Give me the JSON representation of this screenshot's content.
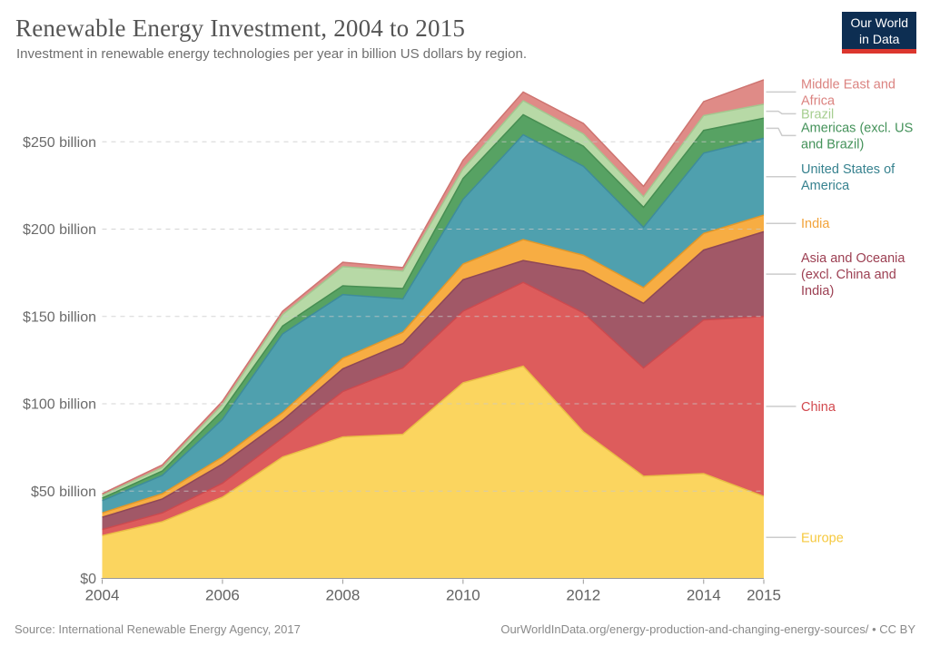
{
  "header": {
    "title": "Renewable Energy Investment, 2004 to 2015",
    "subtitle": "Investment in renewable energy technologies per year in billion US dollars by region.",
    "logo": {
      "line1": "Our World",
      "line2": "in Data",
      "bg_color": "#0d2e52",
      "bar_color": "#dc362e"
    }
  },
  "footer": {
    "source": "Source: International Renewable Energy Agency, 2017",
    "attribution": "OurWorldInData.org/energy-production-and-changing-energy-sources/ • CC BY"
  },
  "chart_data": {
    "type": "area",
    "stacked": true,
    "title": "Renewable Energy Investment, 2004 to 2015",
    "unit": "billion US dollars",
    "x": [
      2004,
      2005,
      2006,
      2007,
      2008,
      2009,
      2010,
      2011,
      2012,
      2013,
      2014,
      2015
    ],
    "x_tick_labels": [
      "2004",
      "2006",
      "2008",
      "2010",
      "2012",
      "2014",
      "2015"
    ],
    "y_ticks": [
      {
        "value": 0,
        "label": "$0"
      },
      {
        "value": 50,
        "label": "$50 billion"
      },
      {
        "value": 100,
        "label": "$100 billion"
      },
      {
        "value": 150,
        "label": "$150 billion"
      },
      {
        "value": 200,
        "label": "$200 billion"
      },
      {
        "value": 250,
        "label": "$250 billion"
      }
    ],
    "ylim": [
      0,
      300
    ],
    "grid": true,
    "legend_position": "right",
    "series_bottom_to_top": [
      {
        "name": "Europe",
        "color": "#FBD55F",
        "stroke": "#E9BE45",
        "label_color": "#F6C93E",
        "values": [
          24.5,
          32.5,
          46.5,
          69.5,
          81,
          82.5,
          112,
          121.5,
          84,
          58.5,
          60,
          47
        ]
      },
      {
        "name": "China",
        "color": "#DD5C5C",
        "stroke": "#CB4A4F",
        "label_color": "#D2494E",
        "values": [
          3.5,
          5,
          8,
          11,
          26,
          38,
          41,
          48,
          68,
          62,
          88,
          103
        ]
      },
      {
        "name": "Asia and Oceania (excl. China and India)",
        "color": "#A15867",
        "stroke": "#8E4757",
        "label_color": "#9C3F52",
        "values": [
          7,
          8,
          11,
          10,
          13,
          14,
          18,
          12.5,
          24,
          37,
          40,
          48.5
        ]
      },
      {
        "name": "India",
        "color": "#F7AD43",
        "stroke": "#E29729",
        "label_color": "#F2A33A",
        "values": [
          2.5,
          3,
          4,
          4.5,
          6,
          6.5,
          9,
          12,
          9,
          9,
          9.5,
          9.5
        ]
      },
      {
        "name": "United States of America",
        "color": "#4FA0AE",
        "stroke": "#3E8C9B",
        "label_color": "#37828F",
        "values": [
          7,
          10.5,
          21.5,
          45,
          36.5,
          19,
          37,
          60,
          51,
          34.5,
          46,
          44
        ]
      },
      {
        "name": "Americas (excl. US and Brazil)",
        "color": "#57A263",
        "stroke": "#478E52",
        "label_color": "#44925A",
        "values": [
          1.5,
          2.5,
          5,
          4.5,
          5,
          6,
          12,
          11.5,
          11.5,
          11.5,
          13,
          11.5
        ]
      },
      {
        "name": "Brazil",
        "color": "#B7D9A6",
        "stroke": "#A3C78F",
        "label_color": "#A6CE90",
        "values": [
          1.5,
          2,
          3.5,
          6.5,
          11,
          10,
          5.5,
          8,
          7,
          6,
          8.5,
          8
        ]
      },
      {
        "name": "Middle East and Africa",
        "color": "#DF8B87",
        "stroke": "#CE7470",
        "label_color": "#DB8380",
        "values": [
          1,
          1.5,
          2,
          2,
          2.5,
          2,
          5,
          5,
          6,
          6,
          8,
          14
        ]
      }
    ]
  }
}
